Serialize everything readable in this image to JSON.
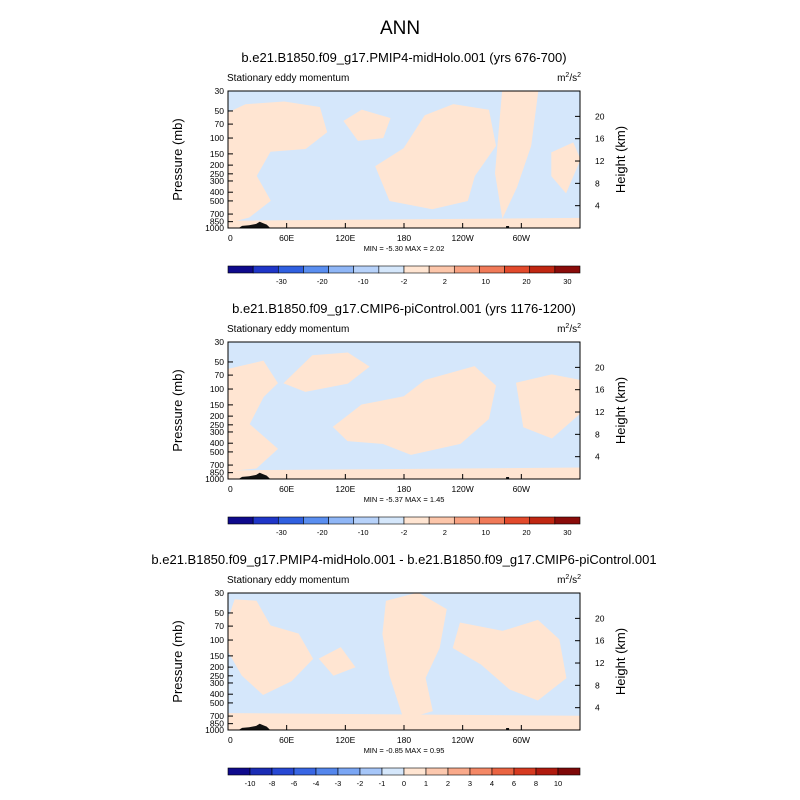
{
  "page_title": "ANN",
  "chart_data": [
    {
      "type": "contour",
      "title": "b.e21.B1850.f09_g17.PMIP4-midHolo.001 (yrs 676-700)",
      "subtitle_left": "Stationary eddy momentum",
      "units_base": "m",
      "units_exp1": "2",
      "units_sep": "/s",
      "units_exp2": "2",
      "ylabel": "Pressure (mb)",
      "y2label": "Height (km)",
      "x_ticks": [
        "0",
        "60E",
        "120E",
        "180",
        "120W",
        "60W"
      ],
      "x_tick_lon": [
        0,
        60,
        120,
        180,
        240,
        300
      ],
      "x_range": [
        0,
        360
      ],
      "y_ticks": [
        "30",
        "50",
        "70",
        "100",
        "150",
        "200",
        "250",
        "300",
        "400",
        "500",
        "700",
        "850",
        "1000"
      ],
      "y_tick_p": [
        30,
        50,
        70,
        100,
        150,
        200,
        250,
        300,
        400,
        500,
        700,
        850,
        1000
      ],
      "y_range_mb": [
        30,
        1000
      ],
      "height_ticks": [
        "20",
        "16",
        "12",
        "8",
        "4"
      ],
      "height_tick_km": [
        20,
        16,
        12,
        8,
        4
      ],
      "stats": "MIN = -5.30  MAX =  2.02",
      "colorbar_labels": [
        "-30",
        "-20",
        "-10",
        "-2",
        "2",
        "10",
        "20",
        "30"
      ],
      "colorbar_colors": [
        "#0f0a8c",
        "#1f36c8",
        "#3060e0",
        "#5a8ef0",
        "#8fb6f6",
        "#b7d2fa",
        "#d5e7fb",
        "#ffe5d2",
        "#fcc6aa",
        "#f7a282",
        "#f07a58",
        "#e24a2c",
        "#c02712",
        "#8a0c0a"
      ]
    },
    {
      "type": "contour",
      "title": "b.e21.B1850.f09_g17.CMIP6-piControl.001 (yrs 1176-1200)",
      "subtitle_left": "Stationary eddy momentum",
      "units_base": "m",
      "units_exp1": "2",
      "units_sep": "/s",
      "units_exp2": "2",
      "ylabel": "Pressure (mb)",
      "y2label": "Height (km)",
      "x_ticks": [
        "0",
        "60E",
        "120E",
        "180",
        "120W",
        "60W"
      ],
      "x_tick_lon": [
        0,
        60,
        120,
        180,
        240,
        300
      ],
      "x_range": [
        0,
        360
      ],
      "y_ticks": [
        "30",
        "50",
        "70",
        "100",
        "150",
        "200",
        "250",
        "300",
        "400",
        "500",
        "700",
        "850",
        "1000"
      ],
      "y_tick_p": [
        30,
        50,
        70,
        100,
        150,
        200,
        250,
        300,
        400,
        500,
        700,
        850,
        1000
      ],
      "y_range_mb": [
        30,
        1000
      ],
      "height_ticks": [
        "20",
        "16",
        "12",
        "8",
        "4"
      ],
      "height_tick_km": [
        20,
        16,
        12,
        8,
        4
      ],
      "stats": "MIN = -5.37  MAX =  1.45",
      "colorbar_labels": [
        "-30",
        "-20",
        "-10",
        "-2",
        "2",
        "10",
        "20",
        "30"
      ],
      "colorbar_colors": [
        "#0f0a8c",
        "#1f36c8",
        "#3060e0",
        "#5a8ef0",
        "#8fb6f6",
        "#b7d2fa",
        "#d5e7fb",
        "#ffe5d2",
        "#fcc6aa",
        "#f7a282",
        "#f07a58",
        "#e24a2c",
        "#c02712",
        "#8a0c0a"
      ]
    },
    {
      "type": "contour",
      "title": "b.e21.B1850.f09_g17.PMIP4-midHolo.001 - b.e21.B1850.f09_g17.CMIP6-piControl.001",
      "subtitle_left": "Stationary eddy momentum",
      "units_base": "m",
      "units_exp1": "2",
      "units_sep": "/s",
      "units_exp2": "2",
      "ylabel": "Pressure (mb)",
      "y2label": "Height (km)",
      "x_ticks": [
        "0",
        "60E",
        "120E",
        "180",
        "120W",
        "60W"
      ],
      "x_tick_lon": [
        0,
        60,
        120,
        180,
        240,
        300
      ],
      "x_range": [
        0,
        360
      ],
      "y_ticks": [
        "30",
        "50",
        "70",
        "100",
        "150",
        "200",
        "250",
        "300",
        "400",
        "500",
        "700",
        "850",
        "1000"
      ],
      "y_tick_p": [
        30,
        50,
        70,
        100,
        150,
        200,
        250,
        300,
        400,
        500,
        700,
        850,
        1000
      ],
      "y_range_mb": [
        30,
        1000
      ],
      "height_ticks": [
        "20",
        "16",
        "12",
        "8",
        "4"
      ],
      "height_tick_km": [
        20,
        16,
        12,
        8,
        4
      ],
      "stats": "MIN = -0.85  MAX =  0.95",
      "colorbar_labels": [
        "-10",
        "-8",
        "-6",
        "-4",
        "-3",
        "-2",
        "-1",
        "0",
        "1",
        "2",
        "3",
        "4",
        "6",
        "8",
        "10"
      ],
      "colorbar_colors": [
        "#0f0a8c",
        "#1a2cb4",
        "#2748d4",
        "#3866e4",
        "#5486ec",
        "#7aa6f4",
        "#a6c6f8",
        "#d5e7fb",
        "#ffe5d2",
        "#fcc8ae",
        "#f9a98a",
        "#f48866",
        "#ea6442",
        "#d63a20",
        "#b01a0e",
        "#7e0808"
      ]
    }
  ]
}
